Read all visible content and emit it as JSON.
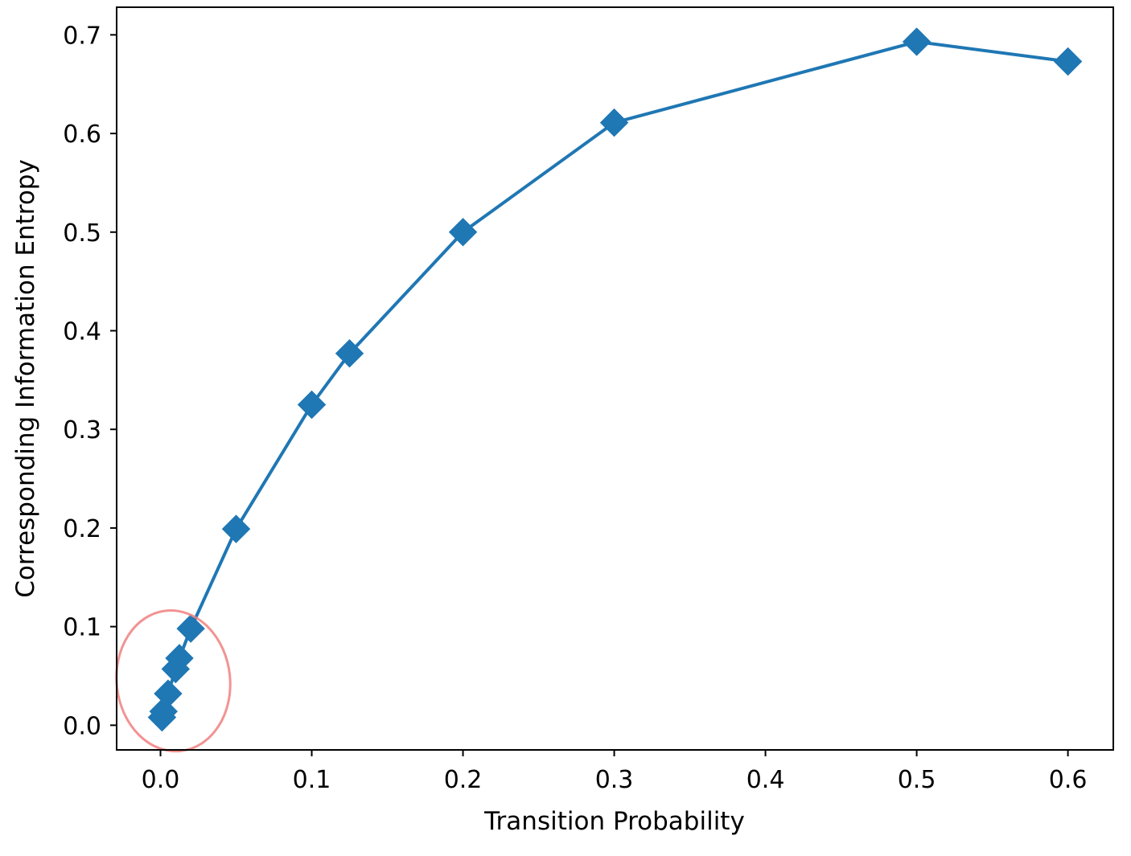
{
  "chart_data": {
    "type": "line",
    "title": "",
    "xlabel": "Transition Probability",
    "ylabel": "Corresponding Information Entropy",
    "xlim": [
      -0.029,
      0.63
    ],
    "ylim": [
      -0.025,
      0.728
    ],
    "x_ticks": [
      0.0,
      0.1,
      0.2,
      0.3,
      0.4,
      0.5,
      0.6
    ],
    "x_tick_labels": [
      "0.0",
      "0.1",
      "0.2",
      "0.3",
      "0.4",
      "0.5",
      "0.6"
    ],
    "y_ticks": [
      0.0,
      0.1,
      0.2,
      0.3,
      0.4,
      0.5,
      0.6,
      0.7
    ],
    "y_tick_labels": [
      "0.0",
      "0.1",
      "0.2",
      "0.3",
      "0.4",
      "0.5",
      "0.6",
      "0.7"
    ],
    "grid": false,
    "series": [
      {
        "color": "#1f77b4",
        "marker": "diamond",
        "x": [
          0.001,
          0.002,
          0.005,
          0.01,
          0.0125,
          0.02,
          0.05,
          0.1,
          0.125,
          0.2,
          0.3,
          0.5,
          0.6
        ],
        "y": [
          0.008,
          0.014,
          0.032,
          0.057,
          0.068,
          0.098,
          0.199,
          0.325,
          0.377,
          0.5,
          0.611,
          0.693,
          0.673
        ]
      }
    ],
    "annotations": [
      {
        "type": "ellipse",
        "color": "#f08080",
        "cx": 0.0085,
        "cy": 0.045,
        "rx": 0.0375,
        "ry": 0.0715
      }
    ]
  }
}
